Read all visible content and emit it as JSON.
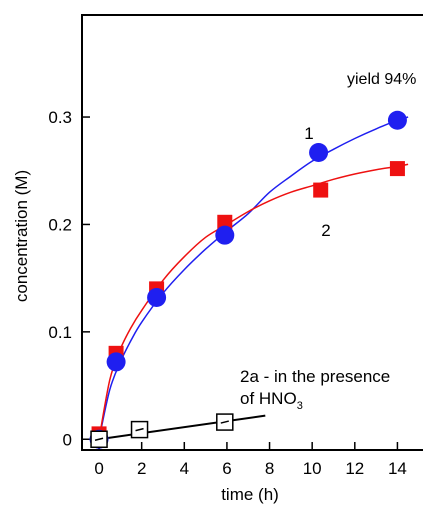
{
  "chart_data": {
    "type": "scatter",
    "xlabel": "time (h)",
    "ylabel": "concentration  (M)",
    "xlim": [
      -0.8,
      15.2
    ],
    "ylim": [
      -0.01,
      0.395
    ],
    "xticks": [
      0,
      2,
      4,
      6,
      8,
      10,
      12,
      14
    ],
    "yticks": [
      0,
      0.1,
      0.2,
      0.3
    ],
    "ytick_labels": [
      "0",
      "0.1",
      "0.2",
      "0.3"
    ],
    "grid": false,
    "series": [
      {
        "name": "1",
        "marker": "circle",
        "color": "#1f1ff0",
        "points": [
          [
            0,
            0.0
          ],
          [
            0.8,
            0.072
          ],
          [
            2.7,
            0.132
          ],
          [
            5.9,
            0.19
          ],
          [
            10.3,
            0.267
          ],
          [
            14,
            0.297
          ]
        ],
        "fit": [
          [
            0,
            0.0
          ],
          [
            0.5,
            0.046
          ],
          [
            1,
            0.072
          ],
          [
            1.5,
            0.092
          ],
          [
            2,
            0.109
          ],
          [
            3,
            0.136
          ],
          [
            4,
            0.158
          ],
          [
            5,
            0.177
          ],
          [
            6,
            0.194
          ],
          [
            7,
            0.21
          ],
          [
            8,
            0.23
          ],
          [
            9,
            0.245
          ],
          [
            10,
            0.259
          ],
          [
            11,
            0.27
          ],
          [
            12,
            0.28
          ],
          [
            13,
            0.289
          ],
          [
            14,
            0.297
          ],
          [
            14.5,
            0.3
          ]
        ]
      },
      {
        "name": "2",
        "marker": "square",
        "color": "#ee1111",
        "points": [
          [
            0,
            0.005
          ],
          [
            0.8,
            0.08
          ],
          [
            2.7,
            0.14
          ],
          [
            5.9,
            0.202
          ],
          [
            10.4,
            0.232
          ],
          [
            14,
            0.252
          ]
        ],
        "fit": [
          [
            0,
            0.0
          ],
          [
            0.5,
            0.055
          ],
          [
            1,
            0.084
          ],
          [
            1.5,
            0.104
          ],
          [
            2,
            0.12
          ],
          [
            3,
            0.148
          ],
          [
            4,
            0.17
          ],
          [
            5,
            0.188
          ],
          [
            6,
            0.2
          ],
          [
            7,
            0.212
          ],
          [
            8,
            0.222
          ],
          [
            9,
            0.23
          ],
          [
            10,
            0.236
          ],
          [
            11,
            0.242
          ],
          [
            12,
            0.247
          ],
          [
            13,
            0.251
          ],
          [
            14,
            0.254
          ],
          [
            14.5,
            0.256
          ]
        ]
      },
      {
        "name": "2a",
        "marker": "open-square",
        "color": "#000000",
        "points": [
          [
            0,
            0.0
          ],
          [
            1.9,
            0.009
          ],
          [
            5.9,
            0.016
          ]
        ],
        "line": [
          [
            0,
            0.0
          ],
          [
            7.8,
            0.022
          ]
        ]
      }
    ],
    "labels": {
      "yield": "yield 94%",
      "curve1": "1",
      "curve2": "2",
      "note_line1": "2a - in the presence",
      "note_line2_prefix": "of HNO",
      "note_line2_sub": "3"
    }
  }
}
